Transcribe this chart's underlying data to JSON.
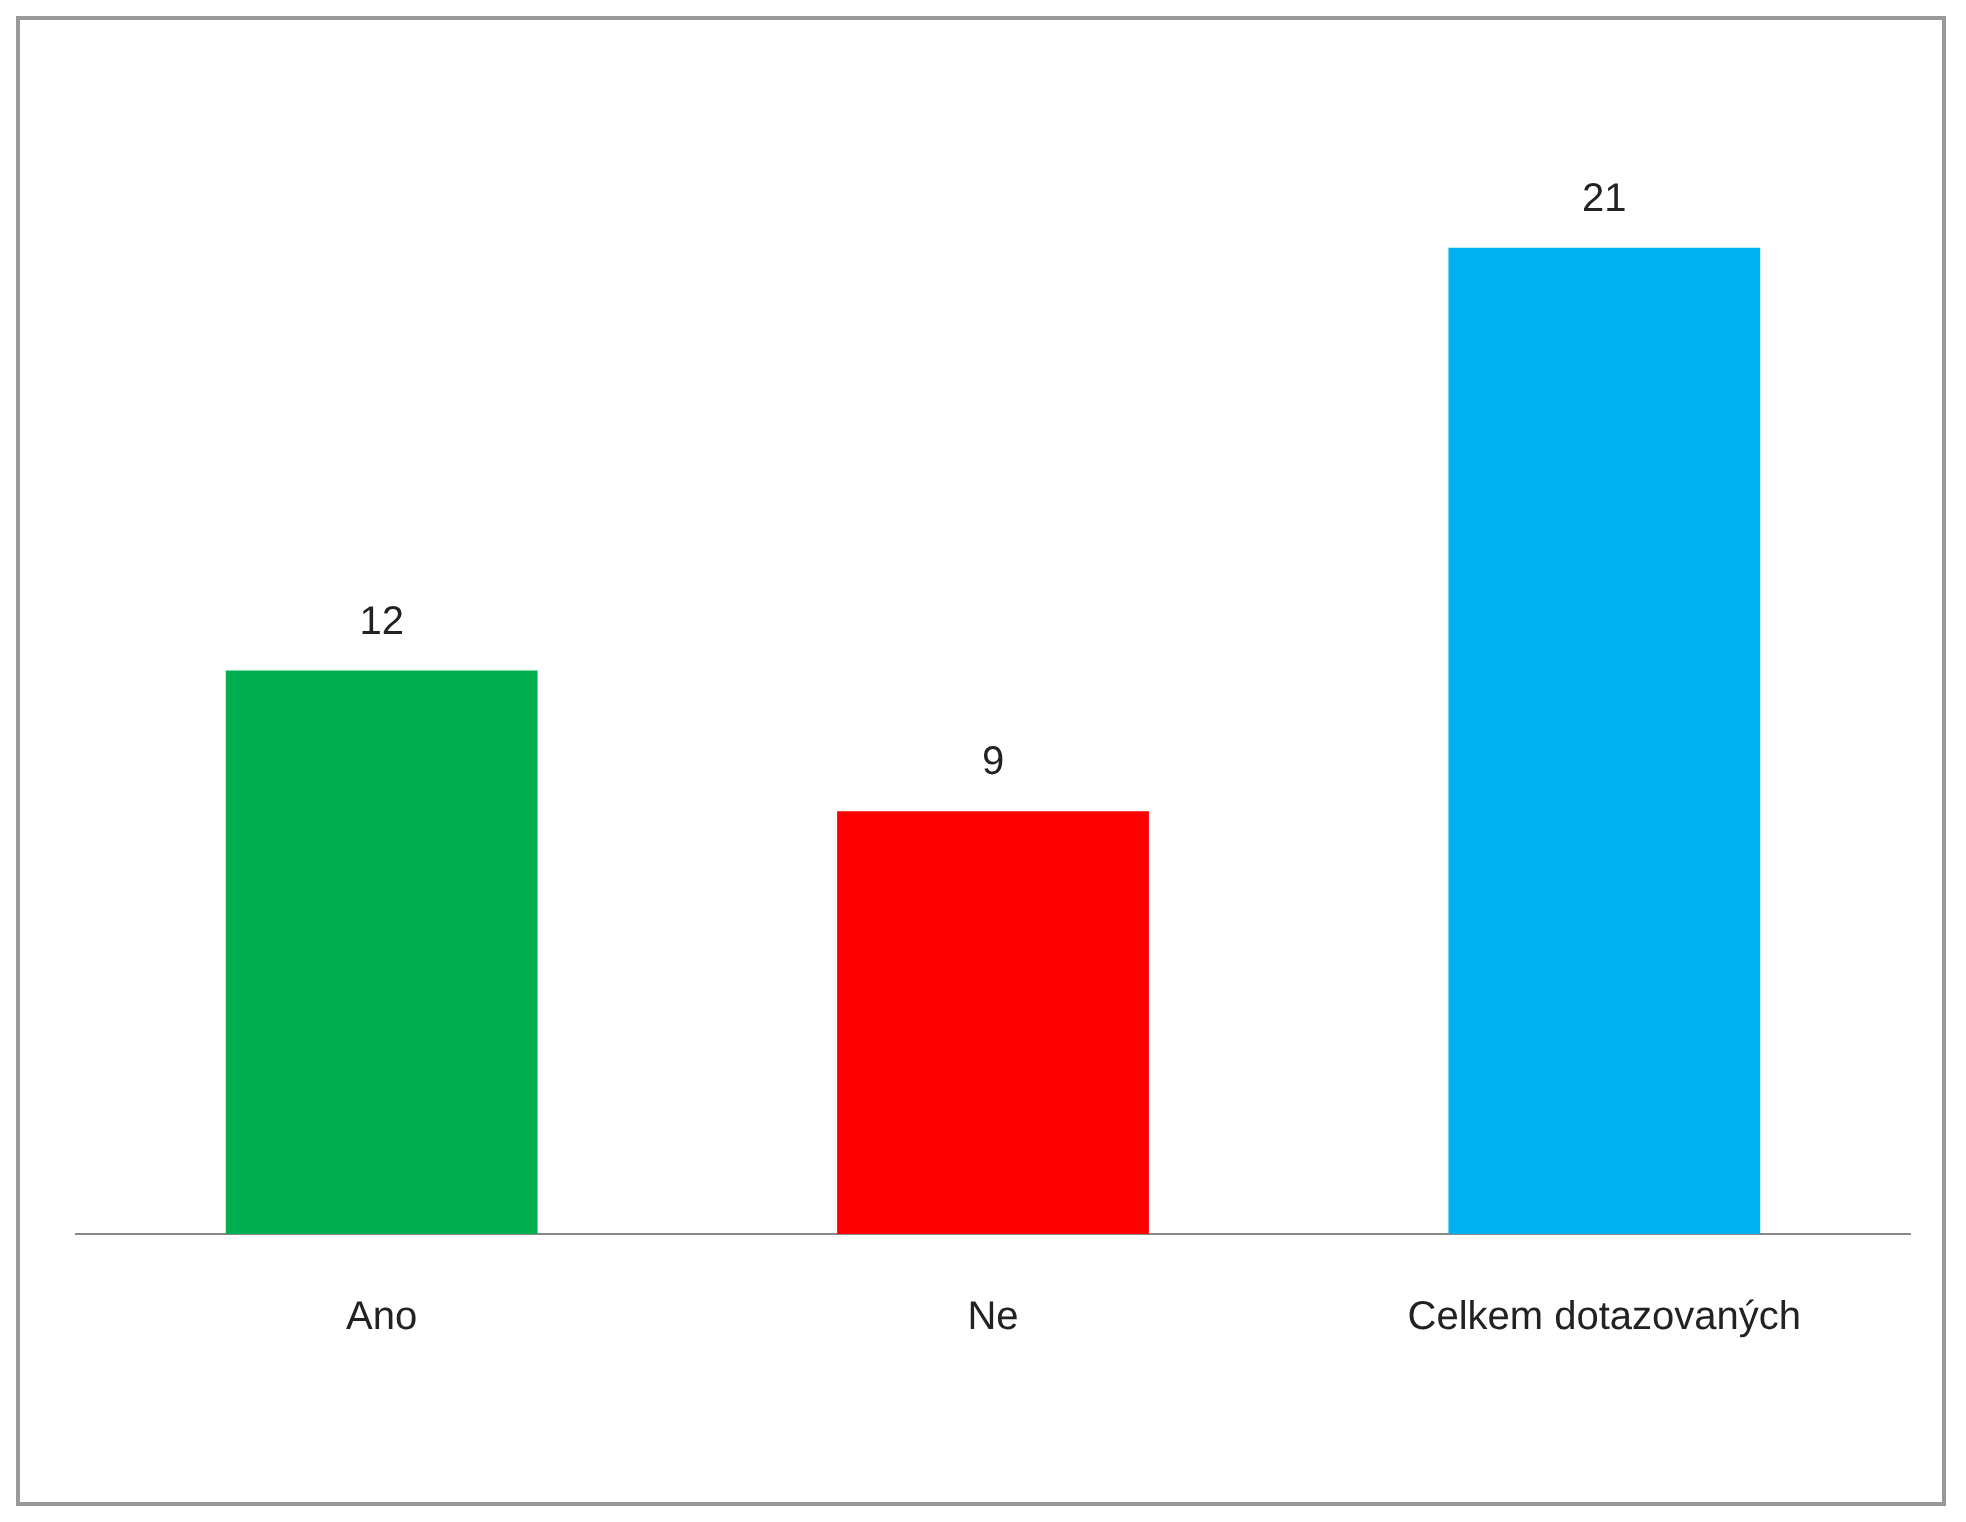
{
  "chart_data": {
    "type": "bar",
    "categories": [
      "Ano",
      "Ne",
      "Celkem dotazovaných"
    ],
    "values": [
      12,
      9,
      21
    ],
    "colors": [
      "#00b050",
      "#ff0000",
      "#00b0f0"
    ],
    "data_labels": true,
    "legend": false,
    "grid": false
  }
}
